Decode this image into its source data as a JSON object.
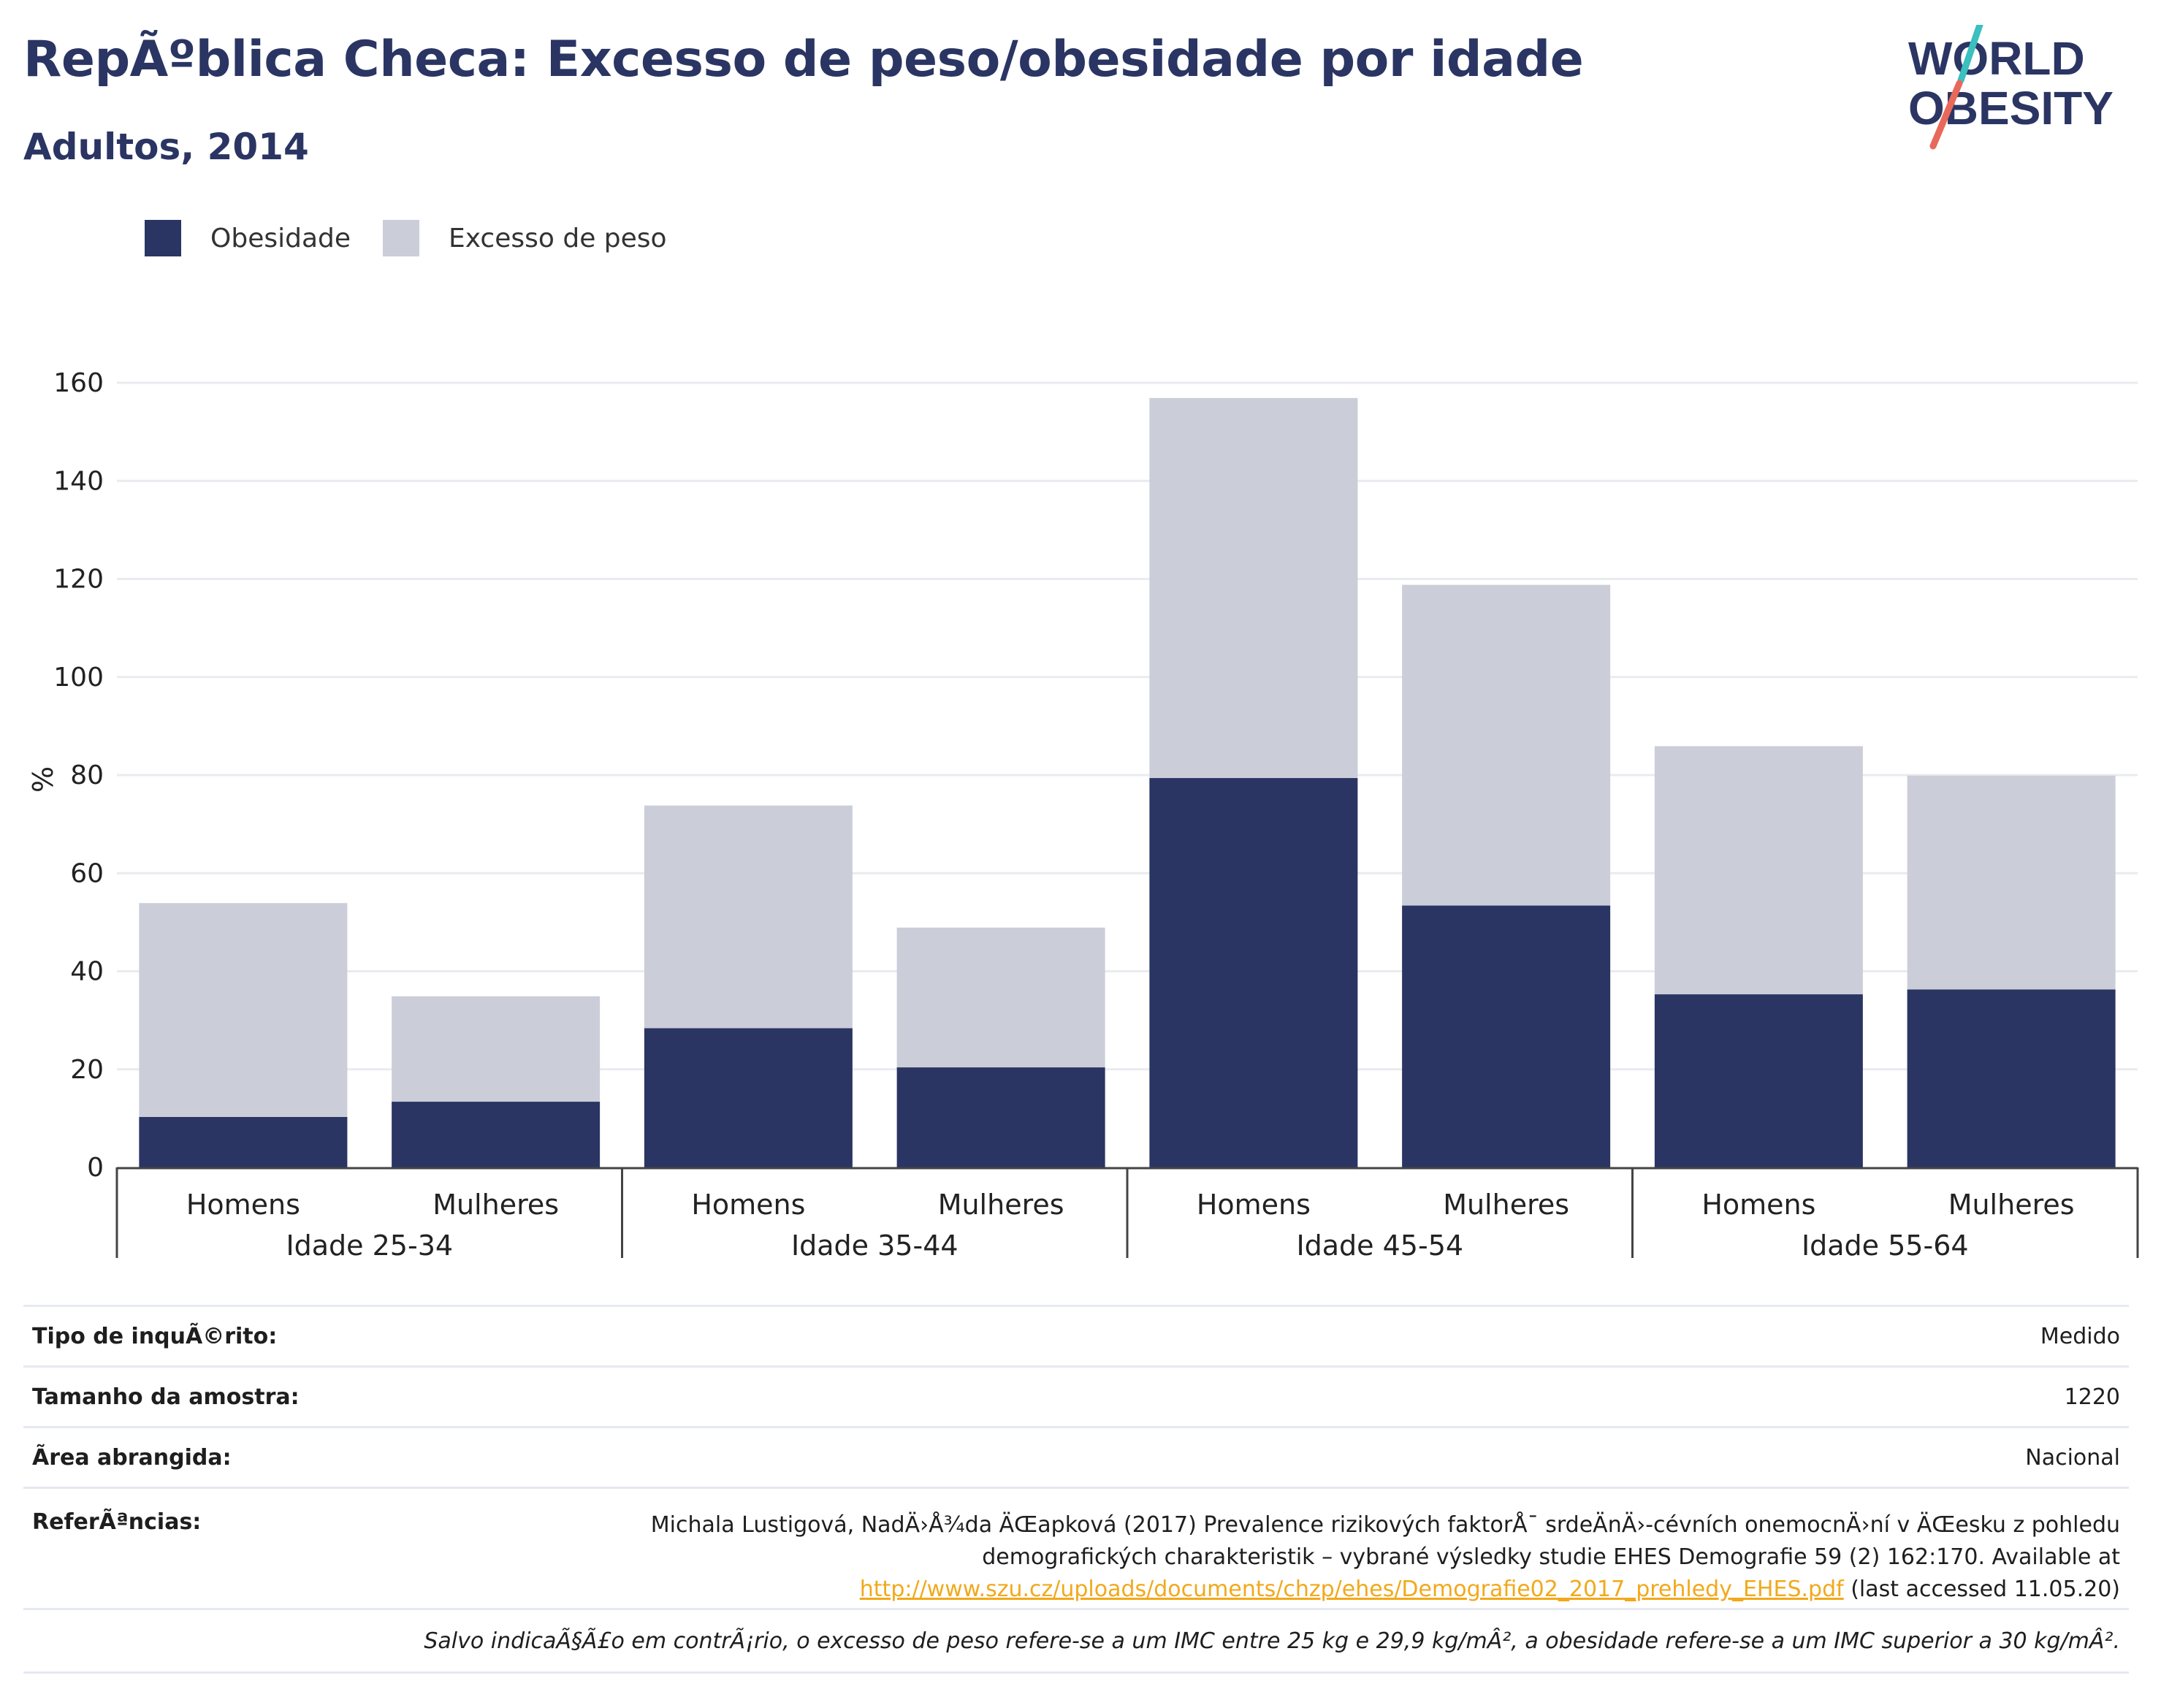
{
  "header": {
    "title": "RepÃºblica Checa: Excesso de peso/obesidade por idade",
    "subtitle": "Adultos, 2014",
    "logo_line1": "WORLD",
    "logo_line2": "OBESITY"
  },
  "colors": {
    "obesity": "#2a3563",
    "overweight": "#cbcdd9",
    "title": "#2a3563",
    "link": "#f1a91b",
    "logo_slash_top": "#3bbfbf",
    "logo_slash_bottom": "#e8685a"
  },
  "legend": [
    {
      "label": "Obesidade",
      "color_key": "obesity",
      "icon": "obesity-swatch"
    },
    {
      "label": "Excesso de peso",
      "color_key": "overweight",
      "icon": "overweight-swatch"
    }
  ],
  "chart_data": {
    "type": "bar",
    "stacked": true,
    "ylabel": "%",
    "ylim": [
      0,
      160
    ],
    "yticks": [
      0,
      20,
      40,
      60,
      80,
      100,
      120,
      140,
      160
    ],
    "grid": true,
    "legend_position": "top-left",
    "groups": [
      "Idade 25-34",
      "Idade 35-44",
      "Idade 45-54",
      "Idade 55-64"
    ],
    "categories": [
      "Homens",
      "Mulheres",
      "Homens",
      "Mulheres",
      "Homens",
      "Mulheres",
      "Homens",
      "Mulheres"
    ],
    "series": [
      {
        "name": "Obesidade",
        "values": [
          10.3,
          13.4,
          28.4,
          20.4,
          79.4,
          53.4,
          35.3,
          36.3
        ]
      },
      {
        "name": "Excesso de peso",
        "values": [
          43.6,
          21.5,
          45.4,
          28.5,
          77.5,
          65.4,
          50.6,
          43.6
        ]
      }
    ]
  },
  "info": {
    "survey_type_label": "Tipo de inquÃ©rito:",
    "survey_type_value": "Medido",
    "sample_size_label": "Tamanho da amostra:",
    "sample_size_value": "1220",
    "area_label": "Ãrea abrangida:",
    "area_value": "Nacional",
    "references_label": "ReferÃªncias:",
    "references_line1": "Michala Lustigová, NadÄ›Å¾da ÄŒapková (2017) Prevalence rizikových faktorÅ¯ srdeÄnÄ›-cévních onemocnÄ›ní v ÄŒesku z pohledu",
    "references_line2": "demografických charakteristik – vybrané výsledky studie EHES Demografie 59 (2) 162:170. Available at",
    "references_link": "http://www.szu.cz/uploads/documents/chzp/ehes/Demografie02_2017_prehledy_EHES.pdf",
    "references_tail": " (last accessed 11.05.20)",
    "note": "Salvo indicaÃ§Ã£o em contrÃ¡rio, o excesso de peso refere-se a um IMC entre 25 kg e 29,9 kg/mÂ², a obesidade refere-se a um IMC superior a 30 kg/mÂ²."
  }
}
